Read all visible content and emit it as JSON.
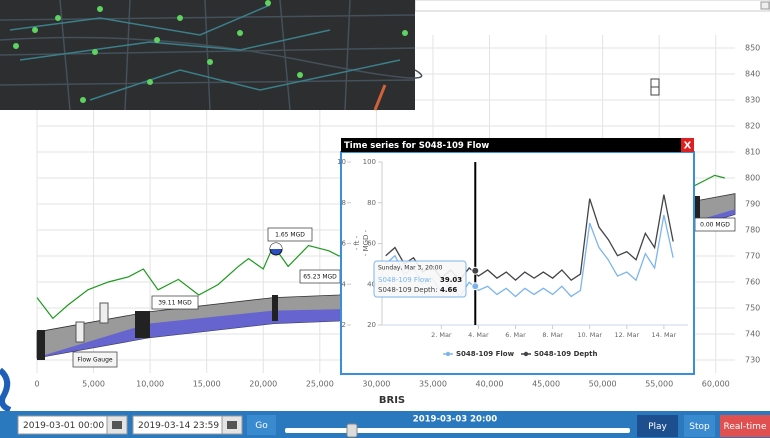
{
  "profile_chart": {
    "type": "line",
    "x_label": "BRIS",
    "xlim": [
      0,
      61700
    ],
    "xticks": [
      0,
      {
        "value": 5000,
        "label": "5,000"
      },
      {
        "value": 10000,
        "label": "10,000"
      },
      {
        "value": 15000,
        "label": "15,000"
      },
      {
        "value": 20000,
        "label": "20,000"
      },
      {
        "value": 25000,
        "label": "25,000"
      },
      {
        "value": 30000,
        "label": "30,000"
      },
      {
        "value": 35000,
        "label": "35,000"
      },
      {
        "value": 40000,
        "label": "40,000"
      },
      {
        "value": 45000,
        "label": "45,000"
      },
      {
        "value": 50000,
        "label": "50,000"
      },
      {
        "value": 55000,
        "label": "55,000"
      },
      {
        "value": 60000,
        "label": "60,000"
      }
    ],
    "ylim": [
      725,
      855
    ],
    "yticks": [
      730,
      740,
      750,
      760,
      770,
      780,
      790,
      800,
      810,
      820,
      830,
      840,
      850
    ],
    "grid": true,
    "ground": {
      "color": "#1e9a1e",
      "x": [
        0,
        1400,
        2700,
        4500,
        6300,
        8100,
        9400,
        10700,
        12500,
        14300,
        16000,
        17800,
        18700,
        20000,
        20900,
        22200,
        24000,
        25800,
        26700,
        58100,
        59000,
        59900,
        60800
      ],
      "values": [
        754,
        746,
        751,
        757,
        760,
        762,
        765,
        757,
        761,
        755,
        759,
        766,
        769,
        765,
        774,
        766,
        774,
        772,
        770,
        797,
        799,
        801,
        800
      ]
    },
    "pipe": {
      "color": "#9a9a9a",
      "water_color": "#5d5ad8",
      "stations": [
        0,
        9840,
        20900,
        26700,
        58600,
        61700
      ],
      "crown": [
        740.8,
        748.5,
        754,
        755,
        791.5,
        794
      ],
      "invert": [
        730.8,
        738.5,
        744,
        745,
        782,
        786
      ],
      "water": [
        731,
        744,
        749,
        749.5,
        784,
        788
      ]
    },
    "flow_labels": [
      "39.11 MGD",
      "1.65 MGD",
      "65.23 MGD",
      "0.00 MGD"
    ],
    "gauge_label": "Flow Gauge"
  },
  "popup": {
    "title": "Time series for S048-109 Flow",
    "close": "X",
    "chart": {
      "type": "line",
      "y_label": "- ft -",
      "y2_label": "- MGD -",
      "xlim": [
        -1.2,
        15.3
      ],
      "xticks": [
        {
          "value": 2,
          "label": "2. Mar"
        },
        {
          "value": 4,
          "label": "4. Mar"
        },
        {
          "value": 6,
          "label": "6. Mar"
        },
        {
          "value": 8,
          "label": "8. Mar"
        },
        {
          "value": 10,
          "label": "10. Mar"
        },
        {
          "value": 12,
          "label": "12. Mar"
        },
        {
          "value": 14,
          "label": "14. Mar"
        }
      ],
      "ylim": [
        2,
        10
      ],
      "yticks": [
        2,
        4,
        6,
        8,
        10
      ],
      "y2lim": [
        20,
        100
      ],
      "y2ticks": [
        20,
        40,
        60,
        80,
        100
      ],
      "x": [
        -1,
        -0.5,
        0,
        0.5,
        1,
        1.5,
        2,
        2.5,
        3,
        3.5,
        4,
        4.5,
        5,
        5.5,
        6,
        6.5,
        7,
        7.5,
        8,
        8.5,
        9,
        9.5,
        10,
        10.5,
        11,
        11.5,
        12,
        12.5,
        13,
        13.5,
        14,
        14.5
      ],
      "series": [
        {
          "name": "S048-109 Flow",
          "color": "#7cb5ec",
          "axis": "y2",
          "values": [
            50,
            54,
            45,
            48,
            40,
            43,
            36,
            40,
            34,
            41,
            37,
            39,
            35,
            38,
            34,
            38,
            35,
            38,
            35,
            39,
            34,
            37,
            70,
            58,
            52,
            44,
            46,
            42,
            55,
            48,
            74,
            53
          ]
        },
        {
          "name": "S048-109 Depth",
          "color": "#434348",
          "values": [
            5.4,
            5.8,
            5.0,
            5.3,
            4.6,
            4.9,
            4.3,
            4.7,
            4.2,
            4.8,
            4.4,
            4.7,
            4.3,
            4.6,
            4.2,
            4.6,
            4.3,
            4.6,
            4.3,
            4.7,
            4.2,
            4.5,
            8.2,
            6.8,
            6.2,
            5.4,
            5.6,
            5.2,
            6.5,
            5.8,
            8.4,
            6.1
          ]
        }
      ],
      "tooltip": {
        "date": "Sunday, Mar 3, 20:00",
        "x": 3.83,
        "rows": [
          {
            "label": "S048-109 Flow:",
            "value": 39.03,
            "axis": "y2"
          },
          {
            "label": "S048-109 Depth:",
            "value": 4.66,
            "axis": "y"
          }
        ]
      }
    }
  },
  "controls": {
    "start": "2019-03-01 00:00",
    "end": "2019-03-14 23:59",
    "go": "Go",
    "current_time": "2019-03-03 20:00",
    "play": "Play",
    "stop": "Stop",
    "realtime": "Real-time"
  }
}
